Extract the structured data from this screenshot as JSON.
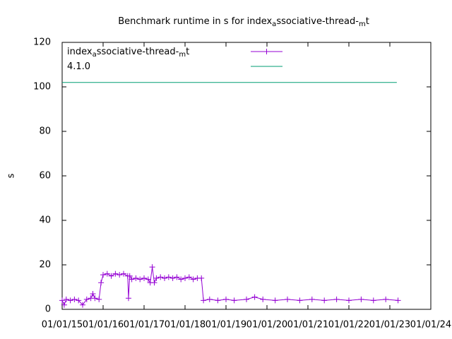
{
  "chart_data": {
    "type": "line",
    "title": [
      "Benchmark runtime in s for index",
      "a",
      "ssociative-thread-",
      "m",
      "t"
    ],
    "ylabel": "s",
    "xlim": [
      2015,
      2024
    ],
    "xticks": [
      {
        "value": 2015,
        "label": "01/01/15"
      },
      {
        "value": 2016,
        "label": "01/01/16"
      },
      {
        "value": 2017,
        "label": "01/01/17"
      },
      {
        "value": 2018,
        "label": "01/01/18"
      },
      {
        "value": 2019,
        "label": "01/01/19"
      },
      {
        "value": 2020,
        "label": "01/01/20"
      },
      {
        "value": 2021,
        "label": "01/01/21"
      },
      {
        "value": 2022,
        "label": "01/01/22"
      },
      {
        "value": 2023,
        "label": "01/01/23"
      },
      {
        "value": 2024,
        "label": "01/01/24"
      }
    ],
    "ylim": [
      0,
      120
    ],
    "yticks": [
      0,
      20,
      40,
      60,
      80,
      100,
      120
    ],
    "series": [
      {
        "name": [
          "index",
          "a",
          "ssociative-thread-",
          "m",
          "t"
        ],
        "color": "#9400d3",
        "markers": true,
        "x": [
          2015.0,
          2015.05,
          2015.1,
          2015.2,
          2015.3,
          2015.4,
          2015.5,
          2015.6,
          2015.7,
          2015.75,
          2015.8,
          2015.9,
          2015.95,
          2016.0,
          2016.1,
          2016.2,
          2016.3,
          2016.4,
          2016.5,
          2016.6,
          2016.62,
          2016.65,
          2016.7,
          2016.8,
          2016.9,
          2017.0,
          2017.1,
          2017.15,
          2017.2,
          2017.25,
          2017.3,
          2017.4,
          2017.5,
          2017.6,
          2017.7,
          2017.8,
          2017.9,
          2018.0,
          2018.1,
          2018.2,
          2018.3,
          2018.4,
          2018.45,
          2018.6,
          2018.8,
          2019.0,
          2019.2,
          2019.5,
          2019.7,
          2019.9,
          2020.2,
          2020.5,
          2020.8,
          2021.1,
          2021.4,
          2021.7,
          2022.0,
          2022.3,
          2022.6,
          2022.9,
          2023.2
        ],
        "values": [
          4,
          2,
          4.5,
          4,
          4.5,
          4,
          2,
          4.5,
          5,
          7,
          5,
          4.5,
          12,
          15.5,
          16,
          15,
          16,
          15.5,
          16,
          15,
          5,
          15,
          13.5,
          14,
          13.5,
          14,
          13.5,
          12,
          19,
          12,
          14,
          14.5,
          14,
          14.5,
          14,
          14.5,
          13.5,
          14,
          14.5,
          13.5,
          14,
          14,
          4,
          4.5,
          4,
          4.5,
          4,
          4.5,
          5.5,
          4.5,
          4,
          4.5,
          4,
          4.5,
          4,
          4.5,
          4,
          4.5,
          4,
          4.5,
          4
        ]
      },
      {
        "name": [
          "4.1.0"
        ],
        "color": "#009e73",
        "markers": false,
        "x": [
          2015.0,
          2023.17
        ],
        "values": [
          102,
          102
        ]
      }
    ]
  }
}
